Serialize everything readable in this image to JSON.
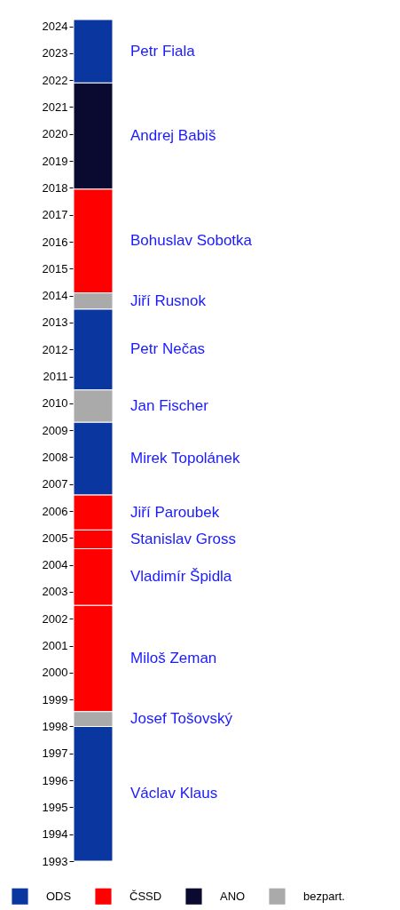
{
  "chart_data": {
    "type": "bar",
    "categories": [
      null
    ],
    "tick_labels": "y",
    "ylim": [
      1993,
      2024.25
    ],
    "yticks": [
      1993,
      1994,
      1995,
      1996,
      1997,
      1998,
      1999,
      2000,
      2001,
      2002,
      2003,
      2004,
      2005,
      2006,
      2007,
      2008,
      2009,
      2010,
      2011,
      2012,
      2013,
      2014,
      2015,
      2016,
      2017,
      2018,
      2019,
      2020,
      2021,
      2022,
      2023,
      2024
    ],
    "legend": "bottom",
    "grid": false,
    "series": [
      {
        "name": "ODS",
        "color": "#0a36a0",
        "base": [
          1993
        ],
        "values": [
          5.0
        ]
      },
      {
        "name": "ČSSD",
        "color": "#ff0000",
        "base": [
          1998.55
        ],
        "values": [
          3.95
        ]
      },
      {
        "name": "ANO",
        "color": "#0a0a30",
        "base": [
          2017.95
        ],
        "values": [
          3.95
        ]
      },
      {
        "name": "bezpart.",
        "color": "#aaaaaa",
        "base": [
          1998
        ],
        "values": [
          0.55
        ]
      },
      {
        "color": "#ff0000",
        "base": [
          2002.5
        ],
        "values": [
          2.1
        ]
      },
      {
        "color": "#ff0000",
        "base": [
          2004.6
        ],
        "values": [
          0.7
        ]
      },
      {
        "color": "#ff0000",
        "base": [
          2005.3
        ],
        "values": [
          1.3
        ]
      },
      {
        "color": "#0a36a0",
        "base": [
          2006.6
        ],
        "values": [
          2.7
        ]
      },
      {
        "color": "#aaaaaa",
        "base": [
          2009.3
        ],
        "values": [
          1.2
        ]
      },
      {
        "color": "#0a36a0",
        "base": [
          2010.5
        ],
        "values": [
          3.0
        ]
      },
      {
        "color": "#aaaaaa",
        "base": [
          2013.5
        ],
        "values": [
          0.6
        ]
      },
      {
        "color": "#ff0000",
        "base": [
          2014.1
        ],
        "values": [
          3.85
        ]
      },
      {
        "color": "#0a36a0",
        "base": [
          2021.9
        ],
        "values": [
          2.35
        ]
      }
    ],
    "annotations": [
      "Václav Klaus",
      "Miloš Zeman",
      "Andrej Babiš",
      "Josef Tošovský",
      "Vladimír Špidla",
      "Stanislav Gross",
      "Jiří Paroubek",
      "Mirek Topolánek",
      "Jan Fischer",
      "Petr Nečas",
      "Jiří Rusnok",
      "Bohuslav Sobotka",
      "Petr Fiala"
    ]
  }
}
